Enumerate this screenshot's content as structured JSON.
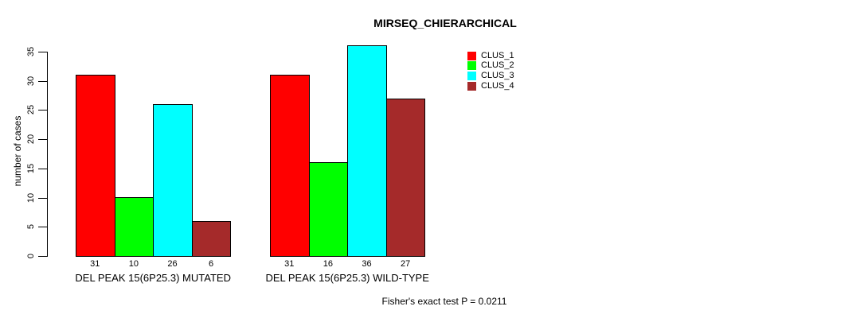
{
  "chart_data": {
    "type": "bar",
    "title": "MIRSEQ_CHIERARCHICAL",
    "ylabel": "number of cases",
    "xlabel": "",
    "categories": [
      "DEL PEAK 15(6P25.3) MUTATED",
      "DEL PEAK 15(6P25.3) WILD-TYPE"
    ],
    "series": [
      {
        "name": "CLUS_1",
        "color": "#FF0000",
        "values": [
          31,
          31
        ]
      },
      {
        "name": "CLUS_2",
        "color": "#00FF00",
        "values": [
          10,
          16
        ]
      },
      {
        "name": "CLUS_3",
        "color": "#00FFFF",
        "values": [
          26,
          36
        ]
      },
      {
        "name": "CLUS_4",
        "color": "#A52A2A",
        "values": [
          6,
          27
        ]
      }
    ],
    "value_labels": [
      [
        31,
        10,
        26,
        6
      ],
      [
        31,
        16,
        36,
        27
      ]
    ],
    "yticks": [
      0,
      5,
      10,
      15,
      20,
      25,
      30,
      35
    ],
    "ylim": [
      0,
      35
    ],
    "grid": false,
    "legend_position": "top-right",
    "bar_border_color": "#000000",
    "annotation": "Fisher's exact test P = 0.0211"
  }
}
